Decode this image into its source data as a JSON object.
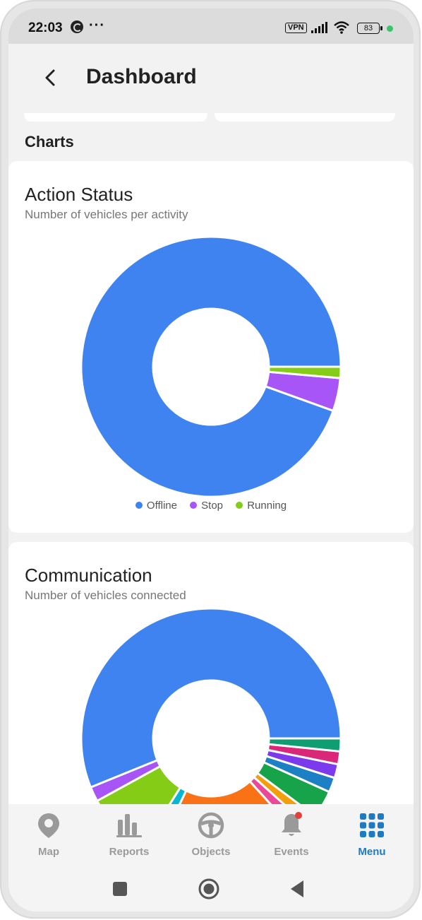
{
  "status_bar": {
    "time": "22:03",
    "dots": "···",
    "vpn": "VPN",
    "battery": "83"
  },
  "header": {
    "back_icon": "chevron-left-icon",
    "title": "Dashboard"
  },
  "section": {
    "title": "Charts"
  },
  "colors": {
    "offline": "#3f83f0",
    "stop": "#a855f7",
    "running": "#84cc16",
    "accent": "#1e7bc1"
  },
  "action_status": {
    "title": "Action Status",
    "subtitle": "Number of vehicles per activity",
    "legend": [
      "Offline",
      "Stop",
      "Running"
    ],
    "chart_data": {
      "type": "pie",
      "labels": [
        "Offline",
        "Stop",
        "Running"
      ],
      "values": [
        94.5,
        4.1,
        1.4
      ],
      "colors": [
        "#3f83f0",
        "#a855f7",
        "#84cc16"
      ],
      "donut": true
    }
  },
  "communication": {
    "title": "Communication",
    "subtitle": "Number of vehicles connected",
    "chart_data": {
      "type": "pie",
      "values": [
        45.7,
        1.5,
        6.6,
        1.5,
        15.3,
        1.3,
        1.2,
        2.8,
        1.5,
        1.4,
        1.3,
        1.3
      ],
      "colors": [
        "#3f83f0",
        "#a855f7",
        "#84cc16",
        "#06b6d4",
        "#f97316",
        "#ec4899",
        "#f59e0b",
        "#16a34a",
        "#1d7fc4",
        "#7c3aed",
        "#db2777",
        "#0f9d72"
      ],
      "donut": true
    }
  },
  "bottom_nav": {
    "items": [
      {
        "label": "Map",
        "icon": "map-pin-icon"
      },
      {
        "label": "Reports",
        "icon": "bar-chart-icon"
      },
      {
        "label": "Objects",
        "icon": "steering-wheel-icon"
      },
      {
        "label": "Events",
        "icon": "bell-icon"
      },
      {
        "label": "Menu",
        "icon": "grid-icon"
      }
    ],
    "active": "Menu"
  },
  "system_nav": {
    "recents": "square-icon",
    "home": "circle-icon",
    "back": "triangle-back-icon"
  }
}
